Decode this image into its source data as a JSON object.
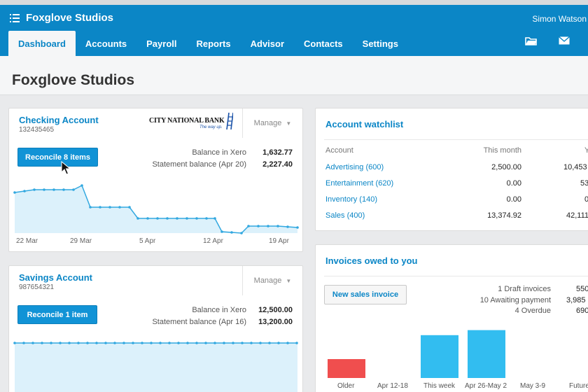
{
  "header": {
    "org_name": "Foxglove Studios",
    "user_name": "Simon Watson",
    "nav": [
      "Dashboard",
      "Accounts",
      "Payroll",
      "Reports",
      "Advisor",
      "Contacts",
      "Settings"
    ],
    "icons": [
      "folder-icon",
      "mail-icon"
    ]
  },
  "page": {
    "title": "Foxglove Studios"
  },
  "checking": {
    "name": "Checking Account",
    "number": "132435465",
    "bank_name": "CITY NATIONAL BANK",
    "bank_tagline": "The way up.",
    "manage_label": "Manage",
    "reconcile_label": "Reconcile 8 items",
    "balance_xero_label": "Balance in Xero",
    "balance_xero_value": "1,632.77",
    "statement_label": "Statement balance (Apr 20)",
    "statement_value": "2,227.40",
    "axis": [
      "22 Mar",
      "29 Mar",
      "5 Apr",
      "12 Apr",
      "19 Apr"
    ]
  },
  "savings": {
    "name": "Savings Account",
    "number": "987654321",
    "manage_label": "Manage",
    "reconcile_label": "Reconcile 1 item",
    "balance_xero_label": "Balance in Xero",
    "balance_xero_value": "12,500.00",
    "statement_label": "Statement balance (Apr 16)",
    "statement_value": "13,200.00"
  },
  "watchlist": {
    "title": "Account watchlist",
    "col_account": "Account",
    "col_month": "This month",
    "col_ytd": "Y",
    "rows": [
      {
        "account": "Advertising (600)",
        "month": "2,500.00",
        "ytd": "10,453"
      },
      {
        "account": "Entertainment (620)",
        "month": "0.00",
        "ytd": "53"
      },
      {
        "account": "Inventory (140)",
        "month": "0.00",
        "ytd": "0"
      },
      {
        "account": "Sales (400)",
        "month": "13,374.92",
        "ytd": "42,111"
      }
    ]
  },
  "invoices": {
    "title": "Invoices owed to you",
    "new_button": "New sales invoice",
    "summary": [
      {
        "label": "1 Draft invoices",
        "amount": "550"
      },
      {
        "label": "10 Awaiting payment",
        "amount": "3,985"
      },
      {
        "label": "4 Overdue",
        "amount": "690"
      }
    ],
    "bars": [
      {
        "label": "Older",
        "value": 0.3,
        "color": "#f04e4e"
      },
      {
        "label": "Apr 12-18",
        "value": 0,
        "color": "#32bdf0"
      },
      {
        "label": "This week",
        "value": 0.68,
        "color": "#32bdf0"
      },
      {
        "label": "Apr 26-May 2",
        "value": 0.76,
        "color": "#32bdf0"
      },
      {
        "label": "May 3-9",
        "value": 0,
        "color": "#32bdf0"
      },
      {
        "label": "Future",
        "value": 0,
        "color": "#32bdf0"
      }
    ]
  }
}
